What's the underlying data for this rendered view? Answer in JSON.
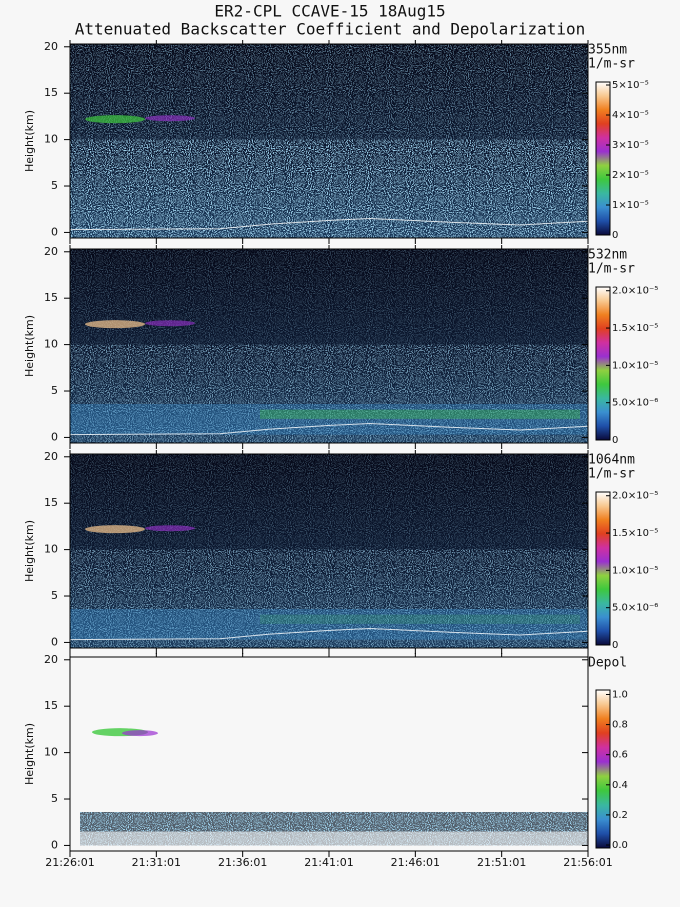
{
  "chart_data": [
    {
      "type": "heatmap",
      "title": "ER2-CPL CCAVE-15 18Aug15",
      "subtitle": "Attenuated Backscatter Coefficient and Depolarization",
      "ylabel": "Height(km)",
      "ylim": [
        -0.6,
        20.3
      ],
      "yticks": [
        0,
        5,
        10,
        15,
        20
      ],
      "colorbar": {
        "label": [
          "355nm",
          "1/m-sr"
        ],
        "lim": [
          0,
          5.1e-05
        ],
        "ticks": [
          0,
          {
            "value": 1e-05,
            "label": "1×10⁻⁵"
          },
          {
            "value": 2e-05,
            "label": "2×10⁻⁵"
          },
          {
            "value": 3e-05,
            "label": "3×10⁻⁵"
          },
          {
            "value": 4e-05,
            "label": "4×10⁻⁵"
          },
          {
            "value": 5e-05,
            "label": "5×10⁻⁵"
          }
        ],
        "colors": [
          "#0a0a3a",
          "#1f4fa8",
          "#3a8fd0",
          "#3ab8a0",
          "#3ec83e",
          "#8fd040",
          "#9a30d0",
          "#d030a0",
          "#e04020",
          "#f08020",
          "#f8c890",
          "#ffffff"
        ]
      }
    },
    {
      "type": "heatmap",
      "ylabel": "Height(km)",
      "ylim": [
        -0.6,
        20.3
      ],
      "yticks": [
        0,
        5,
        10,
        15,
        20
      ],
      "colorbar": {
        "label": [
          "532nm",
          "1/m-sr"
        ],
        "lim": [
          0,
          2.05e-05
        ],
        "ticks": [
          0,
          {
            "value": 5e-06,
            "label": "5.0×10⁻⁶"
          },
          {
            "value": 1e-05,
            "label": "1.0×10⁻⁵"
          },
          {
            "value": 1.5e-05,
            "label": "1.5×10⁻⁵"
          },
          {
            "value": 2e-05,
            "label": "2.0×10⁻⁵"
          }
        ],
        "colors": [
          "#0a0a3a",
          "#1f4fa8",
          "#3a8fd0",
          "#3ab8a0",
          "#3ec83e",
          "#8fd040",
          "#9a30d0",
          "#d030a0",
          "#e04020",
          "#f08020",
          "#f8c890",
          "#ffffff"
        ]
      }
    },
    {
      "type": "heatmap",
      "ylabel": "Height(km)",
      "ylim": [
        -0.6,
        20.3
      ],
      "yticks": [
        0,
        5,
        10,
        15,
        20
      ],
      "colorbar": {
        "label": [
          "1064nm",
          "1/m-sr"
        ],
        "lim": [
          0,
          2.05e-05
        ],
        "ticks": [
          0,
          {
            "value": 5e-06,
            "label": "5.0×10⁻⁶"
          },
          {
            "value": 1e-05,
            "label": "1.0×10⁻⁵"
          },
          {
            "value": 1.5e-05,
            "label": "1.5×10⁻⁵"
          },
          {
            "value": 2e-05,
            "label": "2.0×10⁻⁵"
          }
        ],
        "colors": [
          "#0a0a3a",
          "#1f4fa8",
          "#3a8fd0",
          "#3ab8a0",
          "#3ec83e",
          "#8fd040",
          "#9a30d0",
          "#d030a0",
          "#e04020",
          "#f08020",
          "#f8c890",
          "#ffffff"
        ]
      }
    },
    {
      "type": "heatmap",
      "ylabel": "Height(km)",
      "ylim": [
        -0.6,
        20.3
      ],
      "yticks": [
        0,
        5,
        10,
        15,
        20
      ],
      "xlim": [
        77161,
        78961
      ],
      "xticks": [
        {
          "value": 77161,
          "label": "21:26:01"
        },
        {
          "value": 77461,
          "label": "21:31:01"
        },
        {
          "value": 77761,
          "label": "21:36:01"
        },
        {
          "value": 78061,
          "label": "21:41:01"
        },
        {
          "value": 78361,
          "label": "21:46:01"
        },
        {
          "value": 78661,
          "label": "21:51:01"
        },
        {
          "value": 78961,
          "label": "21:56:01"
        }
      ],
      "colorbar": {
        "label": [
          "Depol"
        ],
        "lim": [
          -0.02,
          1.03
        ],
        "ticks": [
          {
            "value": 0,
            "label": "0.0"
          },
          0.2,
          0.4,
          0.6,
          0.8,
          {
            "value": 1,
            "label": "1.0"
          }
        ],
        "colors": [
          "#0a0a3a",
          "#1f4fa8",
          "#3a8fd0",
          "#3ab8a0",
          "#3ec83e",
          "#8fd040",
          "#9a30d0",
          "#d030a0",
          "#e04020",
          "#f08020",
          "#f8c890",
          "#ffffff"
        ]
      }
    }
  ]
}
